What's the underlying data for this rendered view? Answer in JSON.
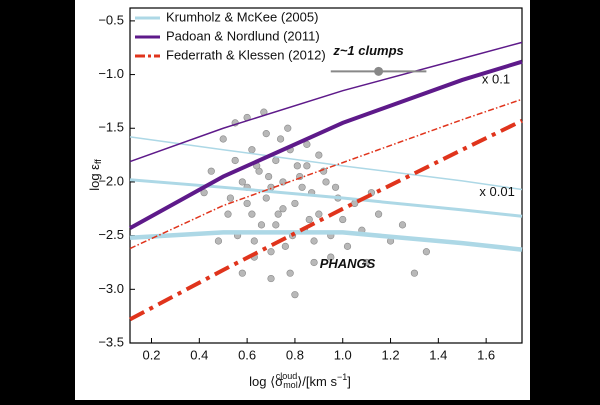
{
  "chart_data": {
    "type": "scatter-lines",
    "xlabel": [
      "log ⟨σ",
      "mol",
      "cloud",
      "⟩/[km s",
      "−1",
      "]"
    ],
    "ylabel": [
      "log ε",
      "ff"
    ],
    "xlim": [
      0.11,
      1.75
    ],
    "ylim": [
      -3.5,
      -0.38
    ],
    "xticks": [
      0.2,
      0.4,
      0.6,
      0.8,
      {
        "value": 1,
        "label": "1.0"
      },
      1.2,
      1.4,
      1.6
    ],
    "yticks": [
      {
        "value": -0.5,
        "label": "−0.5"
      },
      {
        "value": -1,
        "label": "−1.0"
      },
      {
        "value": -1.5,
        "label": "−1.5"
      },
      {
        "value": -2,
        "label": "−2.0"
      },
      {
        "value": -2.5,
        "label": "−2.5"
      },
      {
        "value": -3,
        "label": "−3.0"
      },
      {
        "value": -3.5,
        "label": "−3.5"
      }
    ],
    "line_x": [
      0.11,
      0.5,
      1.0,
      1.5,
      1.75
    ],
    "series": [
      {
        "name": "Krumholz & McKee (2005)",
        "color": "#add8e6",
        "dash": false,
        "lines": [
          {
            "width": 1.5,
            "values": [
              -1.58,
              -1.7,
              -1.85,
              -1.99,
              -2.07
            ]
          },
          {
            "width": 3,
            "values": [
              -1.98,
              -2.05,
              -2.15,
              -2.26,
              -2.32
            ]
          },
          {
            "width": 4.5,
            "values": [
              -2.52,
              -2.47,
              -2.47,
              -2.57,
              -2.63
            ]
          }
        ]
      },
      {
        "name": "Padoan & Nordlund (2011)",
        "color": "#5e1a8a",
        "dash": false,
        "lines": [
          {
            "width": 1.5,
            "values": [
              -1.81,
              -1.5,
              -1.15,
              -0.85,
              -0.7
            ]
          },
          {
            "width": 4,
            "values": [
              -2.43,
              -1.95,
              -1.45,
              -1.05,
              -0.88
            ]
          }
        ]
      },
      {
        "name": "Federrath & Klessen (2012)",
        "color": "#e0341c",
        "dash": true,
        "lines": [
          {
            "width": 1.5,
            "values": [
              -2.62,
              -2.22,
              -1.82,
              -1.42,
              -1.23
            ]
          },
          {
            "width": 4,
            "values": [
              -3.28,
              -2.82,
              -2.25,
              -1.7,
              -1.43
            ]
          }
        ]
      }
    ],
    "points": {
      "color": "#b8b8b8",
      "x": [
        0.42,
        0.45,
        0.5,
        0.52,
        0.55,
        0.56,
        0.58,
        0.6,
        0.6,
        0.62,
        0.63,
        0.65,
        0.66,
        0.68,
        0.7,
        0.7,
        0.72,
        0.73,
        0.75,
        0.76,
        0.78,
        0.8,
        0.8,
        0.82,
        0.84,
        0.85,
        0.87,
        0.88,
        0.9,
        0.92,
        0.95,
        0.97,
        1.0,
        1.02,
        1.05,
        1.08,
        1.1,
        1.15,
        1.2,
        1.25,
        1.3,
        1.35,
        0.48,
        0.55,
        0.62,
        0.68,
        0.74,
        0.79,
        0.86,
        0.93,
        0.58,
        0.64,
        0.7,
        0.77,
        0.83,
        0.9,
        0.98,
        0.6,
        0.67,
        0.72,
        0.78,
        0.85,
        0.53,
        0.69,
        0.75,
        0.81,
        0.88,
        0.95,
        1.12,
        0.63
      ],
      "y": [
        -2.1,
        -1.9,
        -1.6,
        -2.3,
        -1.8,
        -2.5,
        -2.0,
        -1.4,
        -2.2,
        -1.7,
        -2.7,
        -1.9,
        -2.4,
        -1.55,
        -2.05,
        -2.9,
        -1.8,
        -2.3,
        -2.0,
        -2.6,
        -1.7,
        -2.2,
        -3.05,
        -1.95,
        -2.45,
        -1.65,
        -2.1,
        -2.75,
        -2.3,
        -1.9,
        -2.5,
        -2.05,
        -2.35,
        -2.6,
        -2.2,
        -2.45,
        -2.75,
        -2.3,
        -2.55,
        -2.4,
        -2.85,
        -2.65,
        -2.55,
        -1.45,
        -2.3,
        -2.15,
        -1.6,
        -2.5,
        -2.35,
        -2.0,
        -2.85,
        -1.85,
        -2.65,
        -1.5,
        -2.05,
        -1.75,
        -2.15,
        -2.05,
        -1.35,
        -2.4,
        -2.85,
        -1.85,
        -2.15,
        -1.95,
        -2.25,
        -1.85,
        -2.55,
        -2.7,
        -2.1,
        -2.55
      ]
    },
    "clump": {
      "x": 1.15,
      "y": -0.97,
      "xerr": 0.2,
      "color": "#888888",
      "label": "z~1 clumps"
    },
    "annotations": [
      {
        "text": "PHANGS",
        "x": 1.02,
        "y": -2.77
      },
      {
        "text": "x 0.1",
        "x": 1.7,
        "y": -1.05
      },
      {
        "text": "x 0.01",
        "x": 1.72,
        "y": -2.1
      }
    ]
  }
}
